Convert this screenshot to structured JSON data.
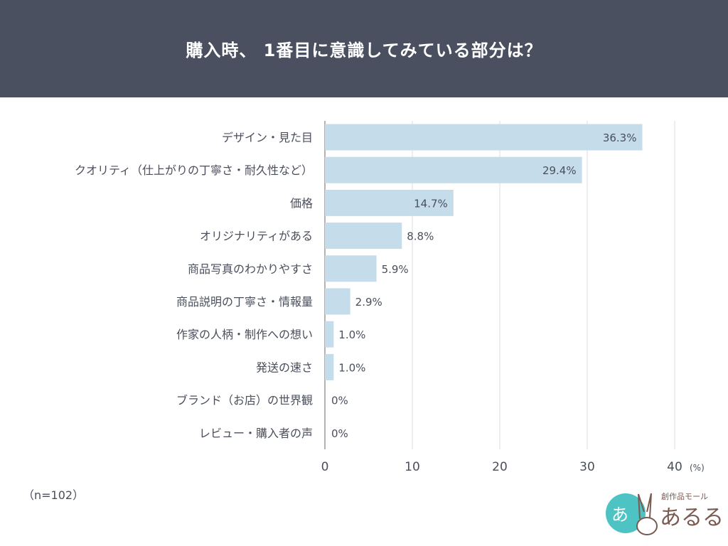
{
  "header": {
    "title": "購入時、 1番目に意識してみている部分は？"
  },
  "chart_data": {
    "type": "bar",
    "orientation": "horizontal",
    "title": "購入時、 1番目に意識してみている部分は？",
    "categories": [
      "デザイン・見た目",
      "クオリティ（仕上がりの丁寧さ・耐久性など）",
      "価格",
      "オリジナリティがある",
      "商品写真のわかりやすさ",
      "商品説明の丁寧さ・情報量",
      "作家の人柄・制作への想い",
      "発送の速さ",
      "ブランド（お店）の世界観",
      "レビュー・購入者の声"
    ],
    "values": [
      36.3,
      29.4,
      14.7,
      8.8,
      5.9,
      2.9,
      1.0,
      1.0,
      0,
      0
    ],
    "data_labels": [
      "36.3%",
      "29.4%",
      "14.7%",
      "8.8%",
      "5.9%",
      "2.9%",
      "1.0%",
      "1.0%",
      "0%",
      "0%"
    ],
    "xlim": [
      0,
      40
    ],
    "xticks": [
      "0",
      "10",
      "20",
      "30",
      "40"
    ],
    "xunit": "(%)",
    "grid": true,
    "bar_color": "#c5dcea"
  },
  "note": "（n=102）",
  "logo": {
    "text": "創作品モールあるる"
  }
}
